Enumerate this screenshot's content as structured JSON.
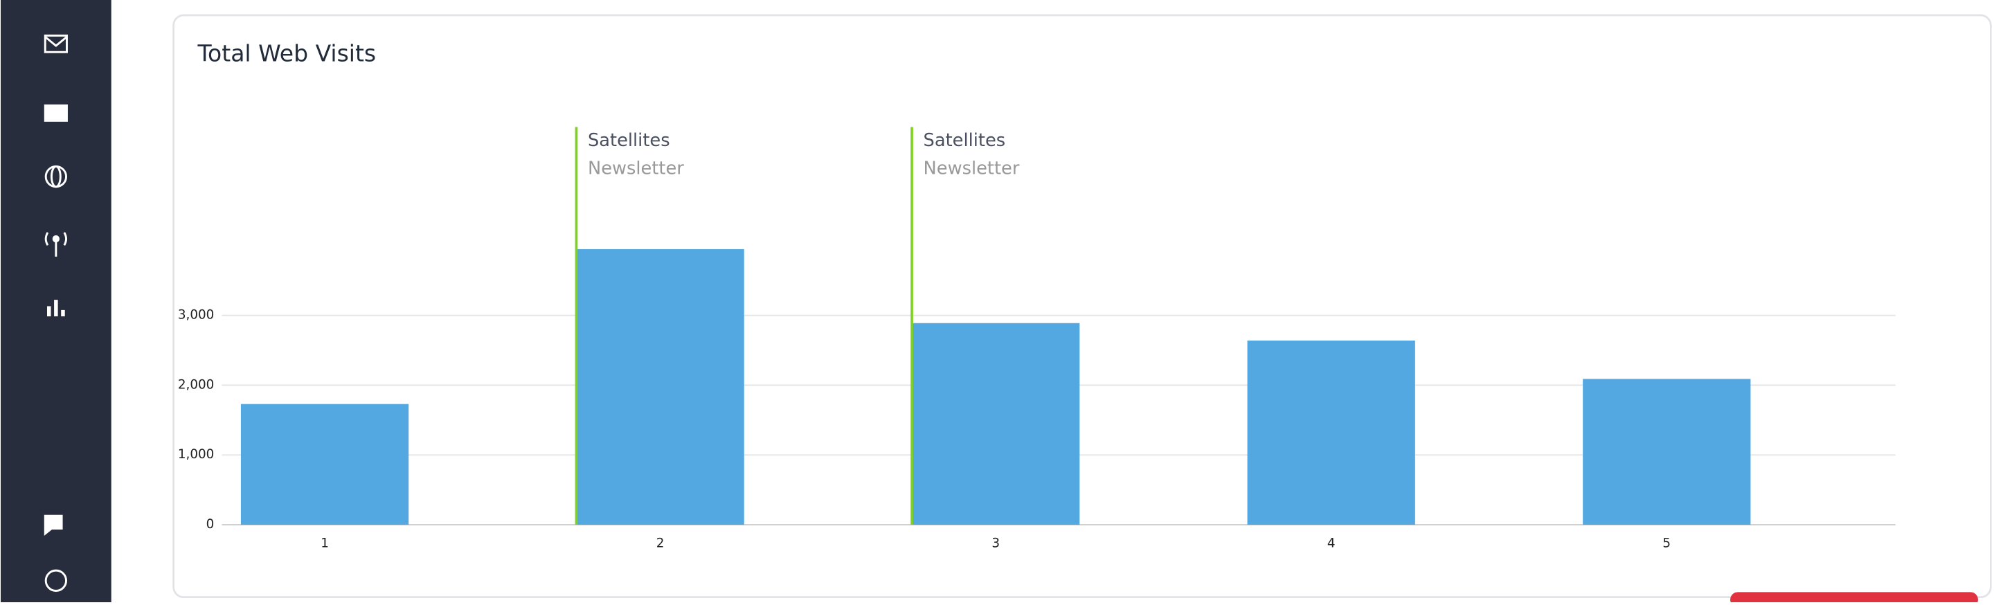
{
  "chart_data": {
    "type": "bar",
    "title": "Total Web Visits",
    "categories": [
      "1",
      "2",
      "3",
      "4",
      "5"
    ],
    "values": [
      1730,
      3950,
      2890,
      2640,
      2090
    ],
    "color": "#53a8e2",
    "ylim": [
      0,
      5700
    ],
    "yticks": [
      0,
      {
        "value": 1000,
        "label": "1,000"
      },
      {
        "value": 2000,
        "label": "2,000"
      },
      {
        "value": 3000,
        "label": "3,000"
      }
    ],
    "grid": true,
    "annotations": [
      {
        "category": "2",
        "title": "Satellites",
        "subtitle": "Newsletter",
        "color": "#7ed321"
      },
      {
        "category": "3",
        "title": "Satellites",
        "subtitle": "Newsletter",
        "color": "#7ed321"
      }
    ]
  }
}
